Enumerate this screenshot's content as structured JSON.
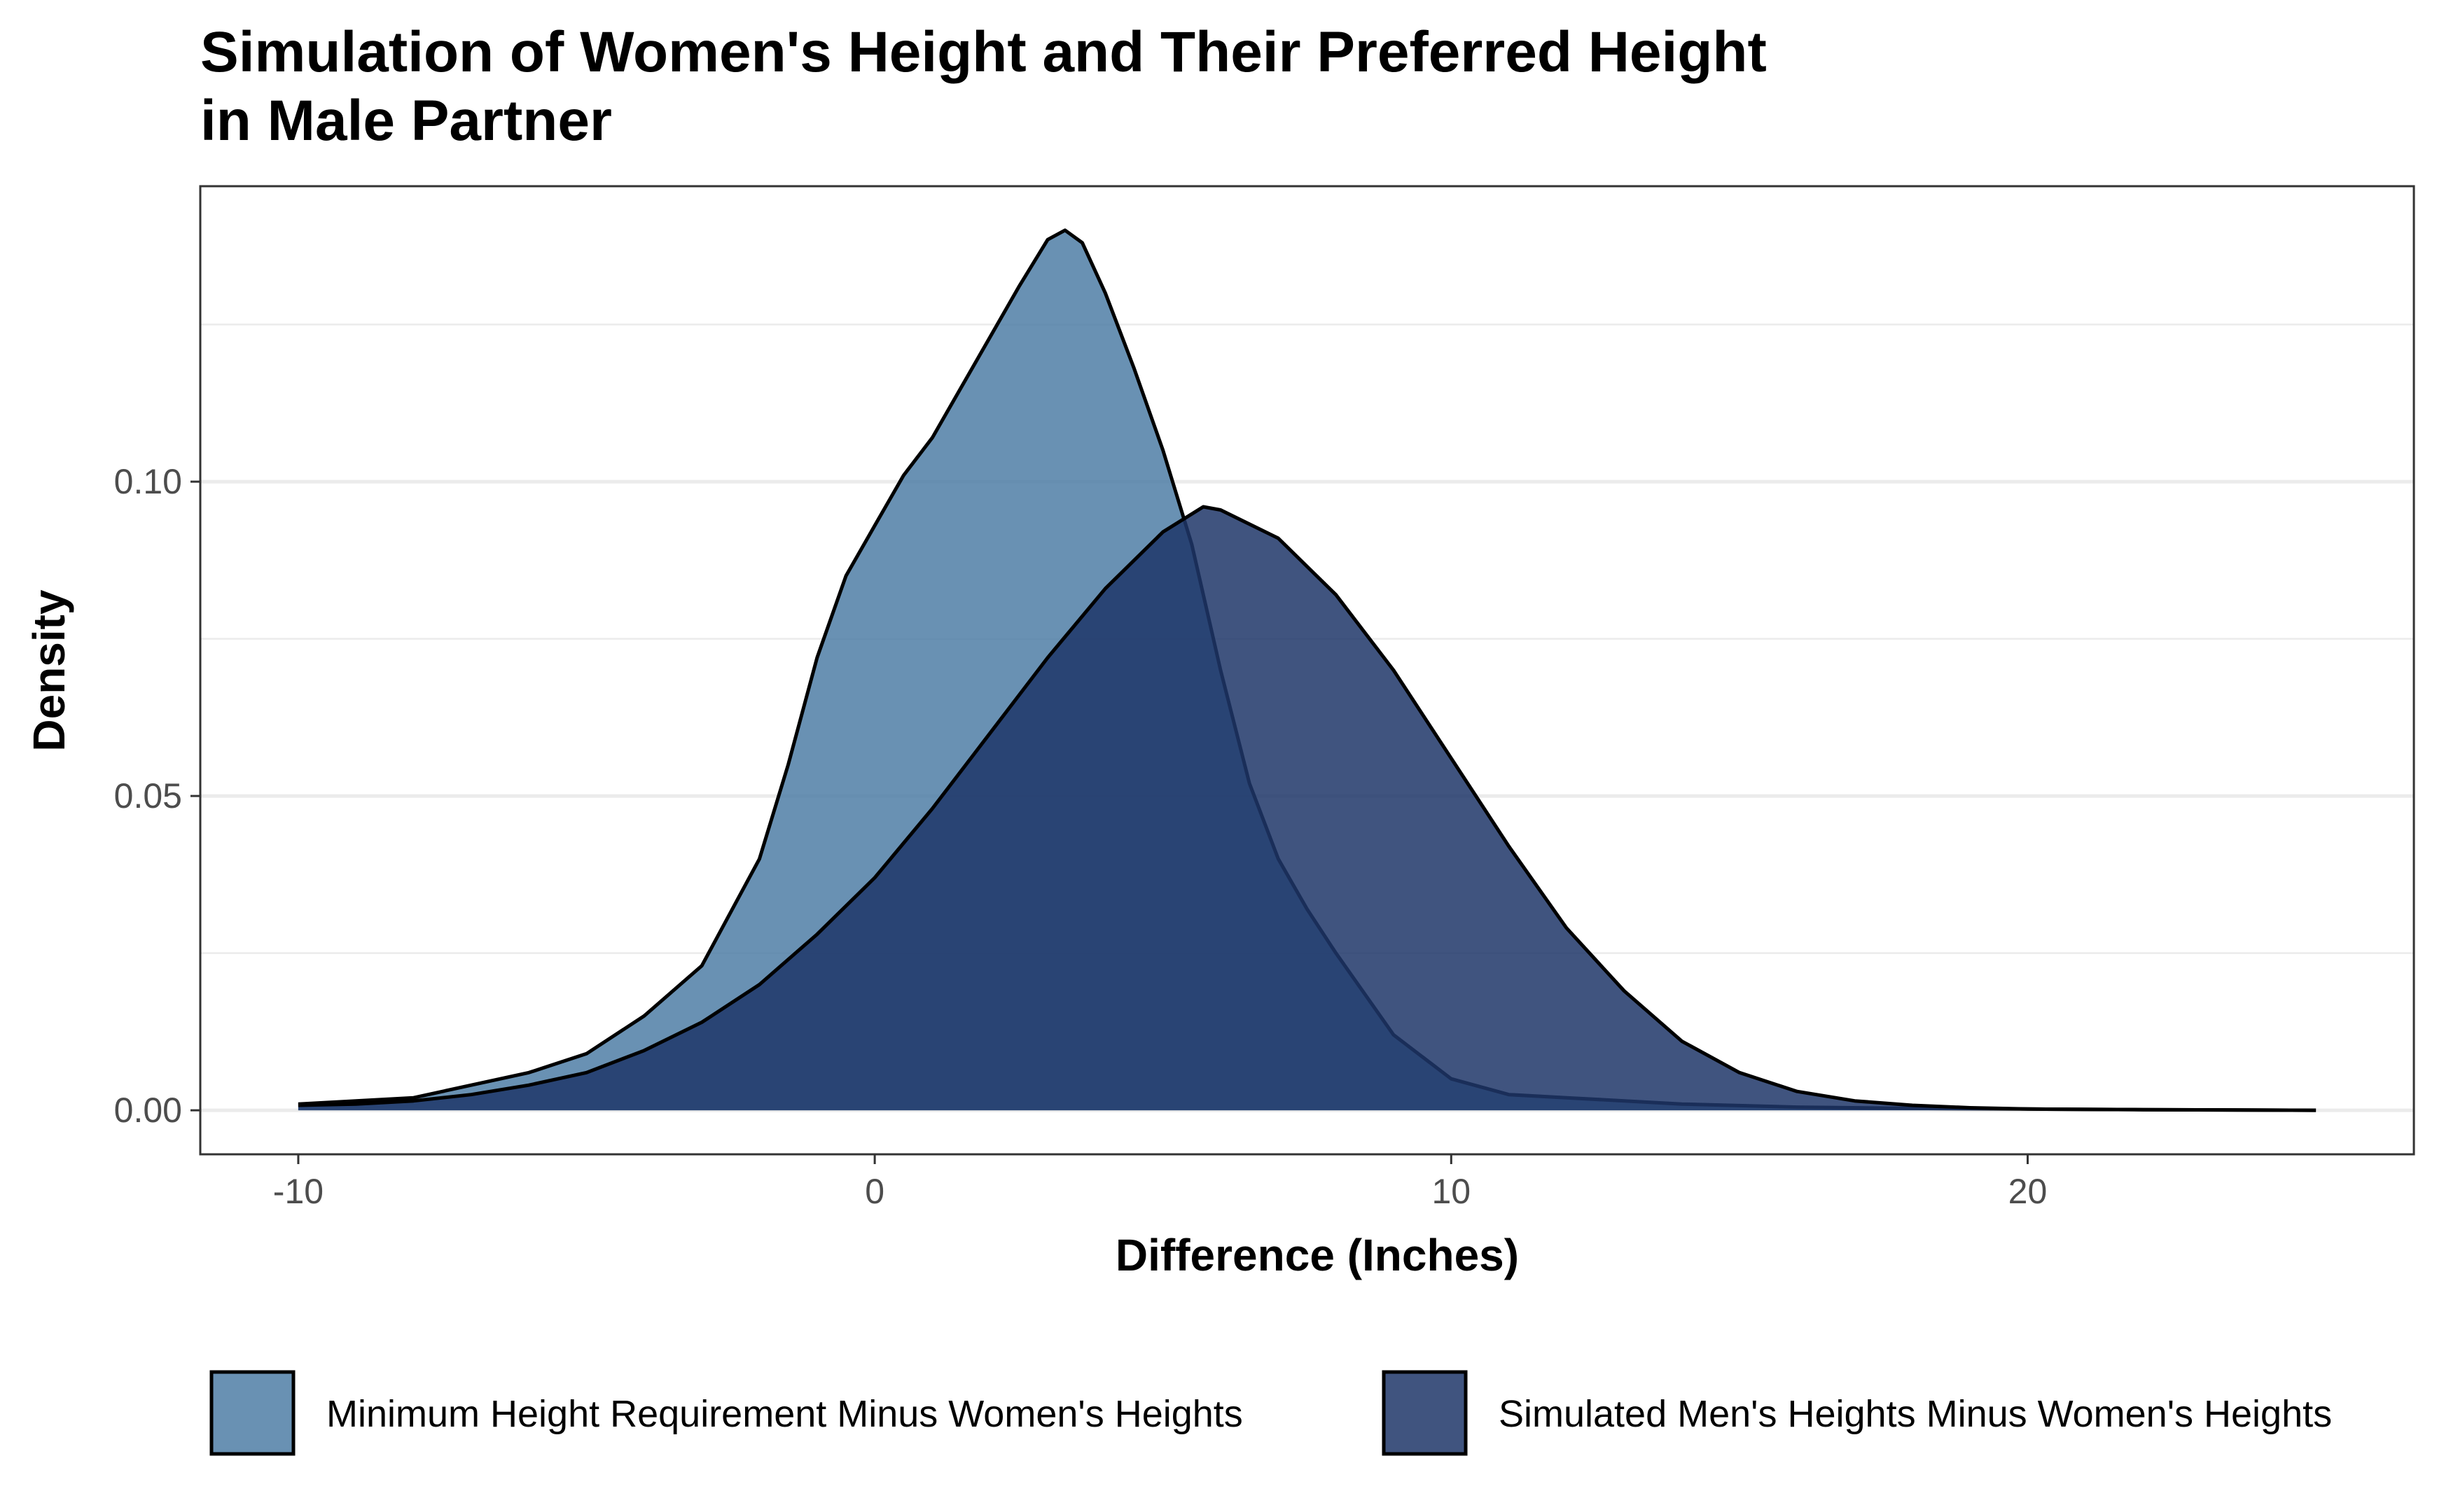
{
  "chart_data": {
    "type": "area",
    "title_lines": [
      "Simulation of Women's Height and Their Preferred Height",
      "in Male Partner"
    ],
    "xlabel": "Difference (Inches)",
    "ylabel": "Density",
    "xlim": [
      -11.7,
      26.7
    ],
    "ylim": [
      -0.007,
      0.147
    ],
    "x_ticks": [
      {
        "value": -10,
        "label": "-10"
      },
      {
        "value": 0,
        "label": "0"
      },
      {
        "value": 10,
        "label": "10"
      },
      {
        "value": 20,
        "label": "20"
      }
    ],
    "y_ticks": [
      {
        "value": 0.0,
        "label": "0.00"
      },
      {
        "value": 0.05,
        "label": "0.05"
      },
      {
        "value": 0.1,
        "label": "0.10"
      }
    ],
    "y_minor_ticks": [
      0.025,
      0.075,
      0.125
    ],
    "grid": true,
    "legend_position": "bottom",
    "series": [
      {
        "name": "Minimum Height Requirement Minus Women's Heights",
        "color": "#4f7ea6",
        "x": [
          -10,
          -9,
          -8,
          -7,
          -6,
          -5,
          -4,
          -3,
          -2,
          -1.5,
          -1,
          -0.5,
          0,
          0.5,
          1,
          1.5,
          2,
          2.5,
          3,
          3.3,
          3.6,
          4,
          4.5,
          5,
          5.5,
          6,
          6.5,
          7,
          7.5,
          8,
          9,
          10,
          11,
          12,
          14,
          16,
          18,
          20,
          22,
          25
        ],
        "values": [
          0.001,
          0.0015,
          0.002,
          0.004,
          0.006,
          0.009,
          0.015,
          0.023,
          0.04,
          0.055,
          0.072,
          0.085,
          0.093,
          0.101,
          0.107,
          0.115,
          0.123,
          0.131,
          0.1385,
          0.14,
          0.138,
          0.13,
          0.118,
          0.105,
          0.09,
          0.07,
          0.052,
          0.04,
          0.032,
          0.025,
          0.012,
          0.005,
          0.0025,
          0.002,
          0.001,
          0.0005,
          0.0003,
          0.0002,
          0.0001,
          0.0
        ]
      },
      {
        "name": "Simulated Men's Heights Minus Women's Heights",
        "color": "#1f3668",
        "x": [
          -10,
          -9,
          -8,
          -7,
          -6,
          -5,
          -4,
          -3,
          -2,
          -1,
          0,
          1,
          2,
          3,
          4,
          5,
          5.7,
          6,
          7,
          8,
          9,
          10,
          11,
          12,
          13,
          14,
          15,
          16,
          17,
          18,
          19,
          20,
          22,
          25
        ],
        "values": [
          0.0008,
          0.001,
          0.0015,
          0.0025,
          0.004,
          0.006,
          0.0095,
          0.014,
          0.02,
          0.028,
          0.037,
          0.048,
          0.06,
          0.072,
          0.083,
          0.092,
          0.096,
          0.0955,
          0.091,
          0.082,
          0.07,
          0.056,
          0.042,
          0.029,
          0.019,
          0.011,
          0.006,
          0.003,
          0.0015,
          0.0008,
          0.0004,
          0.0002,
          0.0001,
          0.0
        ]
      }
    ]
  }
}
